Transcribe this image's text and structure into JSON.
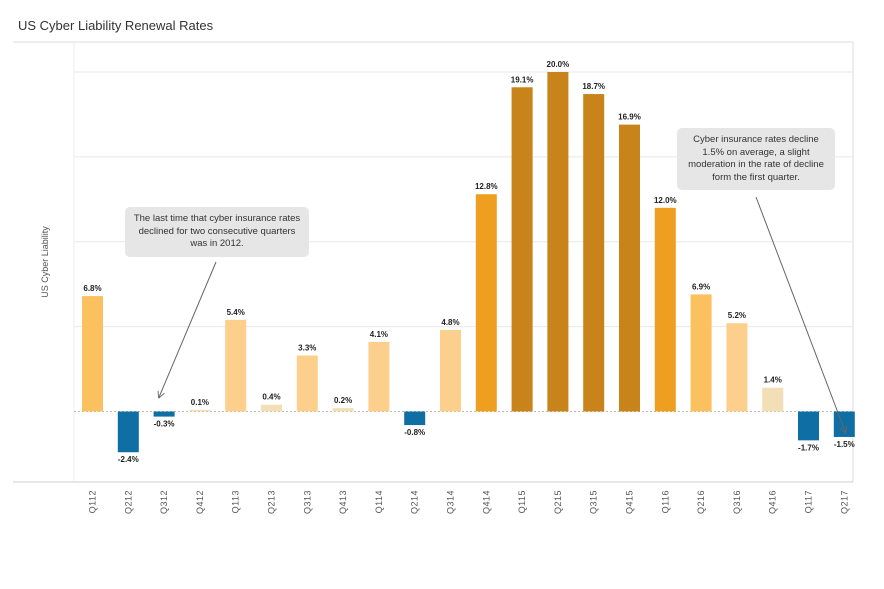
{
  "title": "US Cyber Liability Renewal Rates",
  "chart_data": {
    "type": "bar",
    "title": "US Cyber Liability Renewal Rates",
    "ylabel": "US Cyber Liability",
    "xlabel": "",
    "ylim": [
      -4,
      22
    ],
    "grid": true,
    "categories": [
      "Q112",
      "Q212",
      "Q312",
      "Q412",
      "Q113",
      "Q213",
      "Q313",
      "Q413",
      "Q114",
      "Q214",
      "Q314",
      "Q414",
      "Q115",
      "Q215",
      "Q315",
      "Q415",
      "Q116",
      "Q216",
      "Q316",
      "Q416",
      "Q117",
      "Q217"
    ],
    "values": [
      6.8,
      -2.4,
      -0.3,
      0.1,
      5.4,
      0.4,
      3.3,
      0.2,
      4.1,
      -0.8,
      4.8,
      12.8,
      19.1,
      20.0,
      18.7,
      16.9,
      12.0,
      6.9,
      5.2,
      1.4,
      -1.7,
      -1.5
    ],
    "labels": [
      "6.8%",
      "-2.4%",
      "-0.3%",
      "0.1%",
      "5.4%",
      "0.4%",
      "3.3%",
      "0.2%",
      "4.1%",
      "-0.8%",
      "4.8%",
      "12.8%",
      "19.1%",
      "20.0%",
      "18.7%",
      "16.9%",
      "12.0%",
      "6.9%",
      "5.2%",
      "1.4%",
      "-1.7%",
      "-1.5%"
    ],
    "colors": {
      "negative": "#0f6ea3",
      "very_light": "#f2dfb5",
      "light": "#fcd08c",
      "medium": "#fbc15f",
      "orange": "#ef9f1f",
      "dark": "#c8831a",
      "grid": "#e8e8e8",
      "zero_line": "#bbbbbb"
    },
    "annotations": [
      {
        "text": "The last time that cyber insurance rates declined for two consecutive quarters was in 2012.",
        "points_to": "Q312"
      },
      {
        "text": "Cyber insurance rates decline 1.5% on average, a slight moderation in the rate of decline form the first quarter.",
        "points_to": "Q217"
      }
    ]
  }
}
